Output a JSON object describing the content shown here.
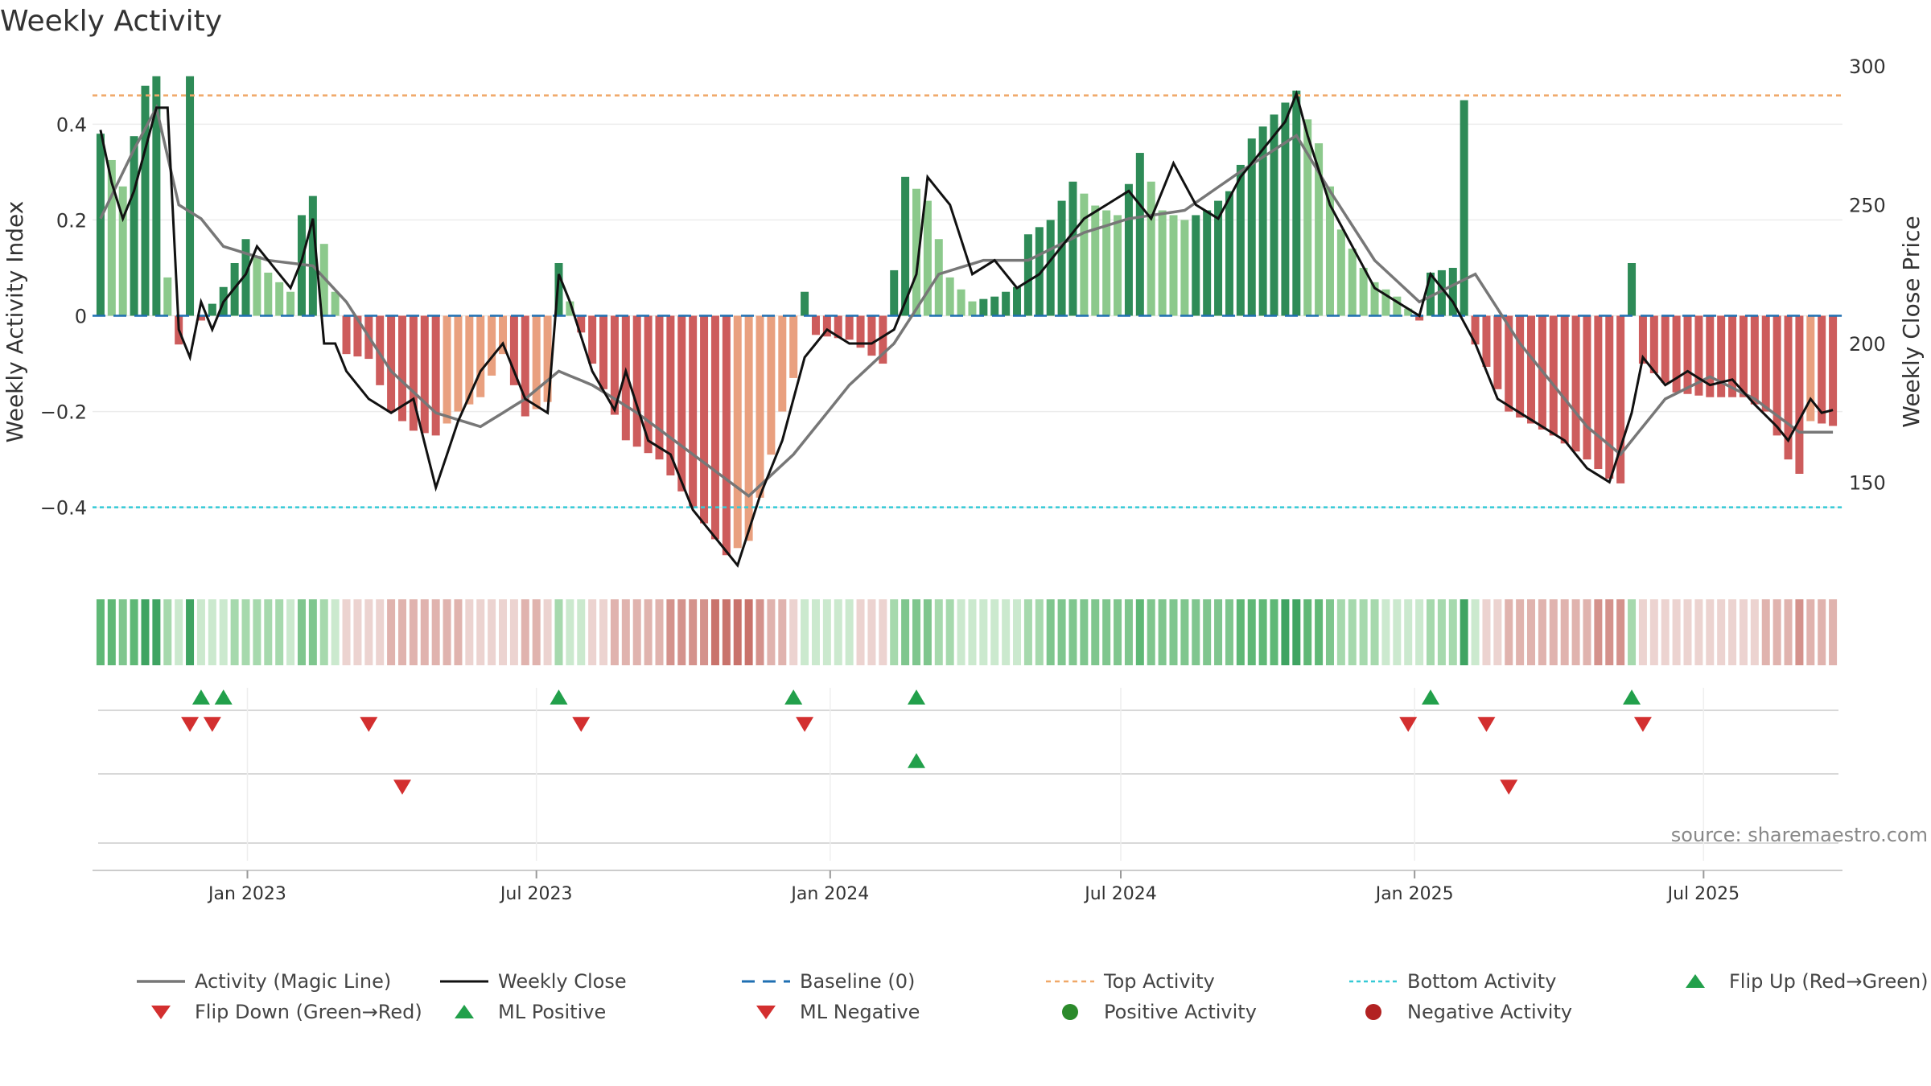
{
  "title": "Weekly Activity",
  "source": "source: sharemaestro.com",
  "colors": {
    "pos_strong": "#2e8b57",
    "pos_mid": "#55b06a",
    "pos_light": "#8cc98c",
    "neg_strong": "#cd5c5c",
    "neg_mid": "#e0786e",
    "neg_light": "#e9a07f",
    "magic": "#777777",
    "close": "#111111",
    "baseline": "#1f6fb2",
    "top": "#f0a868",
    "bottom": "#35c9d6",
    "flip_up": "#22a04b",
    "flip_down": "#d32f2f",
    "ml_pos": "#22a04b",
    "ml_neg": "#d32f2f",
    "pos_act": "#2b8a2b",
    "neg_act": "#b22222"
  },
  "chart_data": {
    "type": "bar",
    "ylabel": "Weekly Activity Index",
    "y2label": "Weekly Close Price",
    "y_ticks": [
      {
        "v": 0.4,
        "label": "0.4"
      },
      {
        "v": 0.2,
        "label": "0.2"
      },
      {
        "v": 0,
        "label": "0"
      },
      {
        "v": -0.2,
        "label": "−0.2"
      },
      {
        "v": -0.4,
        "label": "−0.4"
      }
    ],
    "y2_ticks": [
      {
        "v": 300,
        "label": "300"
      },
      {
        "v": 250,
        "label": "250"
      },
      {
        "v": 200,
        "label": "200"
      },
      {
        "v": 150,
        "label": "150"
      }
    ],
    "x_ticks": [
      {
        "date": "2023-01-01",
        "label": "Jan 2023"
      },
      {
        "date": "2023-07-01",
        "label": "Jul 2023"
      },
      {
        "date": "2024-01-01",
        "label": "Jan 2024"
      },
      {
        "date": "2024-07-01",
        "label": "Jul 2024"
      },
      {
        "date": "2025-01-01",
        "label": "Jan 2025"
      },
      {
        "date": "2025-07-01",
        "label": "Jul 2025"
      }
    ],
    "ylim": [
      -0.55,
      0.55
    ],
    "y2lim": [
      115,
      305
    ],
    "xlim": [
      "2022-09-26",
      "2025-09-26"
    ],
    "top_activity": 0.46,
    "bottom_activity": -0.4,
    "baseline": 0,
    "anchors": {
      "activity": [
        [
          "2022-10-01",
          0.38
        ],
        [
          "2022-10-15",
          0.27
        ],
        [
          "2022-10-29",
          0.48
        ],
        [
          "2022-11-05",
          0.5
        ],
        [
          "2022-11-12",
          0.08
        ],
        [
          "2022-11-19",
          -0.06
        ],
        [
          "2022-11-26",
          0.5
        ],
        [
          "2022-12-03",
          -0.01
        ],
        [
          "2022-12-17",
          0.06
        ],
        [
          "2022-12-31",
          0.16
        ],
        [
          "2023-01-14",
          0.09
        ],
        [
          "2023-01-28",
          0.05
        ],
        [
          "2023-02-04",
          0.21
        ],
        [
          "2023-02-11",
          0.25
        ],
        [
          "2023-02-25",
          0.05
        ],
        [
          "2023-03-04",
          -0.08
        ],
        [
          "2023-03-18",
          -0.09
        ],
        [
          "2023-04-01",
          -0.2
        ],
        [
          "2023-04-15",
          -0.24
        ],
        [
          "2023-04-29",
          -0.25
        ],
        [
          "2023-05-13",
          -0.2
        ],
        [
          "2023-05-27",
          -0.17
        ],
        [
          "2023-06-10",
          -0.08
        ],
        [
          "2023-06-24",
          -0.21
        ],
        [
          "2023-07-08",
          -0.18
        ],
        [
          "2023-07-15",
          0.11
        ],
        [
          "2023-07-22",
          0.03
        ],
        [
          "2023-08-05",
          -0.1
        ],
        [
          "2023-08-26",
          -0.26
        ],
        [
          "2023-09-16",
          -0.3
        ],
        [
          "2023-10-07",
          -0.4
        ],
        [
          "2023-10-28",
          -0.5
        ],
        [
          "2023-11-11",
          -0.47
        ],
        [
          "2023-12-02",
          -0.2
        ],
        [
          "2023-12-09",
          -0.13
        ],
        [
          "2023-12-16",
          0.05
        ],
        [
          "2023-12-23",
          -0.04
        ],
        [
          "2024-01-13",
          -0.05
        ],
        [
          "2024-02-03",
          -0.1
        ],
        [
          "2024-02-17",
          0.29
        ],
        [
          "2024-03-02",
          0.24
        ],
        [
          "2024-03-16",
          0.08
        ],
        [
          "2024-03-30",
          0.03
        ],
        [
          "2024-04-13",
          0.04
        ],
        [
          "2024-04-27",
          0.06
        ],
        [
          "2024-05-04",
          0.17
        ],
        [
          "2024-05-18",
          0.2
        ],
        [
          "2024-06-01",
          0.28
        ],
        [
          "2024-06-15",
          0.23
        ],
        [
          "2024-06-29",
          0.21
        ],
        [
          "2024-07-13",
          0.34
        ],
        [
          "2024-07-27",
          0.22
        ],
        [
          "2024-08-10",
          0.2
        ],
        [
          "2024-08-24",
          0.22
        ],
        [
          "2024-09-07",
          0.26
        ],
        [
          "2024-09-21",
          0.37
        ],
        [
          "2024-10-05",
          0.42
        ],
        [
          "2024-10-19",
          0.47
        ],
        [
          "2024-10-26",
          0.41
        ],
        [
          "2024-11-02",
          0.36
        ],
        [
          "2024-11-16",
          0.18
        ],
        [
          "2024-11-30",
          0.1
        ],
        [
          "2024-12-07",
          0.07
        ],
        [
          "2024-12-21",
          0.04
        ],
        [
          "2025-01-04",
          -0.01
        ],
        [
          "2025-01-11",
          0.09
        ],
        [
          "2025-01-25",
          0.1
        ],
        [
          "2025-02-01",
          0.45
        ],
        [
          "2025-02-08",
          -0.06
        ],
        [
          "2025-03-01",
          -0.2
        ],
        [
          "2025-03-29",
          -0.25
        ],
        [
          "2025-04-19",
          -0.3
        ],
        [
          "2025-05-03",
          -0.34
        ],
        [
          "2025-05-10",
          -0.35
        ],
        [
          "2025-05-17",
          0.11
        ],
        [
          "2025-05-24",
          -0.1
        ],
        [
          "2025-06-14",
          -0.16
        ],
        [
          "2025-07-05",
          -0.17
        ],
        [
          "2025-07-26",
          -0.17
        ],
        [
          "2025-08-09",
          -0.2
        ],
        [
          "2025-08-23",
          -0.3
        ],
        [
          "2025-08-30",
          -0.33
        ],
        [
          "2025-09-06",
          -0.22
        ],
        [
          "2025-09-20",
          -0.23
        ]
      ],
      "close": [
        [
          "2022-10-01",
          277
        ],
        [
          "2022-10-08",
          258
        ],
        [
          "2022-10-15",
          245
        ],
        [
          "2022-10-22",
          255
        ],
        [
          "2022-10-29",
          270
        ],
        [
          "2022-11-05",
          285
        ],
        [
          "2022-11-12",
          285
        ],
        [
          "2022-11-19",
          205
        ],
        [
          "2022-11-26",
          195
        ],
        [
          "2022-12-03",
          215
        ],
        [
          "2022-12-10",
          205
        ],
        [
          "2022-12-17",
          215
        ],
        [
          "2022-12-31",
          225
        ],
        [
          "2023-01-07",
          235
        ],
        [
          "2023-01-14",
          230
        ],
        [
          "2023-01-21",
          225
        ],
        [
          "2023-01-28",
          220
        ],
        [
          "2023-02-04",
          230
        ],
        [
          "2023-02-11",
          245
        ],
        [
          "2023-02-18",
          200
        ],
        [
          "2023-02-25",
          200
        ],
        [
          "2023-03-04",
          190
        ],
        [
          "2023-03-18",
          180
        ],
        [
          "2023-04-01",
          175
        ],
        [
          "2023-04-15",
          180
        ],
        [
          "2023-04-29",
          148
        ],
        [
          "2023-05-13",
          172
        ],
        [
          "2023-05-27",
          190
        ],
        [
          "2023-06-10",
          200
        ],
        [
          "2023-06-24",
          180
        ],
        [
          "2023-07-08",
          175
        ],
        [
          "2023-07-15",
          225
        ],
        [
          "2023-07-22",
          215
        ],
        [
          "2023-08-05",
          190
        ],
        [
          "2023-08-19",
          176
        ],
        [
          "2023-08-26",
          190
        ],
        [
          "2023-09-09",
          165
        ],
        [
          "2023-09-23",
          160
        ],
        [
          "2023-10-07",
          140
        ],
        [
          "2023-10-21",
          130
        ],
        [
          "2023-11-04",
          120
        ],
        [
          "2023-11-18",
          145
        ],
        [
          "2023-12-02",
          165
        ],
        [
          "2023-12-16",
          195
        ],
        [
          "2023-12-30",
          205
        ],
        [
          "2024-01-13",
          200
        ],
        [
          "2024-01-27",
          200
        ],
        [
          "2024-02-10",
          205
        ],
        [
          "2024-02-24",
          225
        ],
        [
          "2024-03-02",
          260
        ],
        [
          "2024-03-16",
          250
        ],
        [
          "2024-03-30",
          225
        ],
        [
          "2024-04-13",
          230
        ],
        [
          "2024-04-27",
          220
        ],
        [
          "2024-05-11",
          225
        ],
        [
          "2024-05-25",
          235
        ],
        [
          "2024-06-08",
          245
        ],
        [
          "2024-06-22",
          250
        ],
        [
          "2024-07-06",
          255
        ],
        [
          "2024-07-20",
          245
        ],
        [
          "2024-08-03",
          265
        ],
        [
          "2024-08-17",
          250
        ],
        [
          "2024-08-31",
          245
        ],
        [
          "2024-09-14",
          260
        ],
        [
          "2024-09-28",
          270
        ],
        [
          "2024-10-12",
          280
        ],
        [
          "2024-10-19",
          290
        ],
        [
          "2024-10-26",
          275
        ],
        [
          "2024-11-09",
          250
        ],
        [
          "2024-11-23",
          235
        ],
        [
          "2024-12-07",
          220
        ],
        [
          "2024-12-21",
          215
        ],
        [
          "2025-01-04",
          210
        ],
        [
          "2025-01-11",
          225
        ],
        [
          "2025-01-25",
          215
        ],
        [
          "2025-02-08",
          200
        ],
        [
          "2025-02-22",
          180
        ],
        [
          "2025-03-08",
          175
        ],
        [
          "2025-03-22",
          170
        ],
        [
          "2025-04-05",
          165
        ],
        [
          "2025-04-19",
          155
        ],
        [
          "2025-05-03",
          150
        ],
        [
          "2025-05-17",
          175
        ],
        [
          "2025-05-24",
          195
        ],
        [
          "2025-06-07",
          185
        ],
        [
          "2025-06-21",
          190
        ],
        [
          "2025-07-05",
          185
        ],
        [
          "2025-07-19",
          187
        ],
        [
          "2025-08-02",
          178
        ],
        [
          "2025-08-16",
          170
        ],
        [
          "2025-08-23",
          165
        ],
        [
          "2025-09-06",
          180
        ],
        [
          "2025-09-13",
          175
        ],
        [
          "2025-09-20",
          176
        ]
      ],
      "magic": [
        [
          "2022-10-01",
          245
        ],
        [
          "2022-10-22",
          270
        ],
        [
          "2022-11-05",
          285
        ],
        [
          "2022-11-19",
          250
        ],
        [
          "2022-12-03",
          245
        ],
        [
          "2022-12-17",
          235
        ],
        [
          "2023-01-14",
          230
        ],
        [
          "2023-02-11",
          228
        ],
        [
          "2023-03-04",
          215
        ],
        [
          "2023-04-01",
          190
        ],
        [
          "2023-04-29",
          175
        ],
        [
          "2023-05-27",
          170
        ],
        [
          "2023-06-24",
          180
        ],
        [
          "2023-07-15",
          190
        ],
        [
          "2023-08-05",
          185
        ],
        [
          "2023-09-02",
          175
        ],
        [
          "2023-10-07",
          160
        ],
        [
          "2023-11-11",
          145
        ],
        [
          "2023-12-09",
          160
        ],
        [
          "2024-01-13",
          185
        ],
        [
          "2024-02-10",
          200
        ],
        [
          "2024-03-09",
          225
        ],
        [
          "2024-04-06",
          230
        ],
        [
          "2024-05-04",
          230
        ],
        [
          "2024-06-08",
          240
        ],
        [
          "2024-07-06",
          245
        ],
        [
          "2024-08-10",
          248
        ],
        [
          "2024-09-14",
          262
        ],
        [
          "2024-10-19",
          275
        ],
        [
          "2024-11-09",
          255
        ],
        [
          "2024-12-07",
          230
        ],
        [
          "2025-01-04",
          215
        ],
        [
          "2025-02-08",
          225
        ],
        [
          "2025-03-08",
          200
        ],
        [
          "2025-04-19",
          170
        ],
        [
          "2025-05-10",
          160
        ],
        [
          "2025-06-07",
          180
        ],
        [
          "2025-07-05",
          188
        ],
        [
          "2025-08-02",
          180
        ],
        [
          "2025-08-30",
          168
        ],
        [
          "2025-09-20",
          168
        ]
      ]
    },
    "heat_colors": [
      "#3fa462",
      "#5fb876",
      "#7fc68e",
      "#a6d9ad",
      "#cbe9ce",
      "#ecd3d0",
      "#e0b3ae",
      "#d4928c",
      "#c9736c"
    ],
    "markers": {
      "flip_up": [
        "2022-12-03",
        "2022-12-17",
        "2023-07-15",
        "2023-12-09",
        "2024-02-24",
        "2025-01-11",
        "2025-05-17"
      ],
      "flip_down": [
        "2022-11-26",
        "2022-12-10",
        "2023-03-18",
        "2023-07-29",
        "2023-12-16",
        "2024-12-28",
        "2025-02-15",
        "2025-05-24"
      ],
      "ml_positive": [
        "2024-02-24"
      ],
      "ml_negative": [
        "2023-04-08",
        "2025-03-01"
      ]
    },
    "legend": [
      {
        "label": "Activity (Magic Line)",
        "sym": "magic"
      },
      {
        "label": "Weekly Close",
        "sym": "close"
      },
      {
        "label": "Baseline (0)",
        "sym": "baseline"
      },
      {
        "label": "Top Activity",
        "sym": "top"
      },
      {
        "label": "Bottom Activity",
        "sym": "bottom"
      },
      {
        "label": "Flip Up (Red→Green)",
        "sym": "flip_up"
      },
      {
        "label": "Flip Down (Green→Red)",
        "sym": "flip_down"
      },
      {
        "label": "ML Positive",
        "sym": "ml_pos"
      },
      {
        "label": "ML Negative",
        "sym": "ml_neg"
      },
      {
        "label": "Positive Activity",
        "sym": "pos_act"
      },
      {
        "label": "Negative Activity",
        "sym": "neg_act"
      }
    ]
  }
}
